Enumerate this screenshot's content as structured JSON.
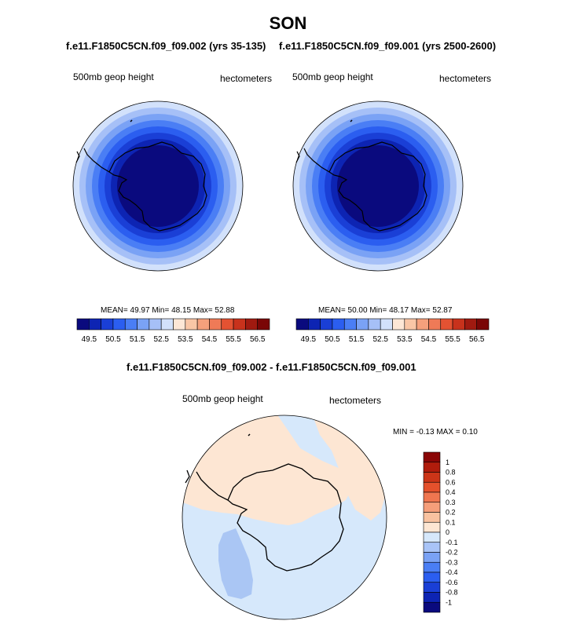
{
  "page": {
    "title": "SON"
  },
  "chart_data": [
    {
      "type": "heatmap",
      "projection": "south-polar-stereographic",
      "case_title": "f.e11.F1850C5CN.f09_f09.002 (yrs 35-135)",
      "variable": "500mb geop height",
      "units": "hectometers",
      "stats": {
        "mean_label": "MEAN=",
        "mean": "49.97",
        "min_label": "Min=",
        "min": "48.15",
        "max_label": "Max=",
        "max": "52.88"
      },
      "rings": [
        52.5,
        52.0,
        51.5,
        51.0,
        50.5,
        50.0,
        49.5,
        49.0
      ],
      "colorbar": {
        "colors": [
          "#0a0a7e",
          "#0d24b3",
          "#1a3fd6",
          "#2b5ef0",
          "#4a7ef5",
          "#7aa2f5",
          "#a6c0f7",
          "#d2e1fb",
          "#fde7d6",
          "#f9c6a6",
          "#f5a07c",
          "#ef7a57",
          "#e45232",
          "#c8321c",
          "#a01a10",
          "#7a0606"
        ],
        "labels": [
          "49.5",
          "50.5",
          "51.5",
          "52.5",
          "53.5",
          "54.5",
          "55.5",
          "56.5"
        ]
      }
    },
    {
      "type": "heatmap",
      "projection": "south-polar-stereographic",
      "case_title": "f.e11.F1850C5CN.f09_f09.001 (yrs 2500-2600)",
      "variable": "500mb geop height",
      "units": "hectometers",
      "stats": {
        "mean_label": "MEAN=",
        "mean": "50.00",
        "min_label": "Min=",
        "min": "48.17",
        "max_label": "Max=",
        "max": "52.87"
      },
      "rings": [
        52.5,
        52.0,
        51.5,
        51.0,
        50.5,
        50.0,
        49.5,
        49.0
      ],
      "colorbar": {
        "colors": [
          "#0a0a7e",
          "#0d24b3",
          "#1a3fd6",
          "#2b5ef0",
          "#4a7ef5",
          "#7aa2f5",
          "#a6c0f7",
          "#d2e1fb",
          "#fde7d6",
          "#f9c6a6",
          "#f5a07c",
          "#ef7a57",
          "#e45232",
          "#c8321c",
          "#a01a10",
          "#7a0606"
        ],
        "labels": [
          "49.5",
          "50.5",
          "51.5",
          "52.5",
          "53.5",
          "54.5",
          "55.5",
          "56.5"
        ]
      }
    },
    {
      "type": "heatmap",
      "projection": "south-polar-stereographic",
      "diff_title": "f.e11.F1850C5CN.f09_f09.002 - f.e11.F1850C5CN.f09_f09.001",
      "variable": "500mb geop height",
      "units": "hectometers",
      "stats": {
        "min_label": "MIN =",
        "min": "-0.13",
        "max_label": "MAX =",
        "max": "0.10"
      },
      "colorbar": {
        "colors": [
          "#0a0a7e",
          "#0d24b3",
          "#1a3fd6",
          "#2b5ef0",
          "#4a7ef5",
          "#7aa2f5",
          "#a9c4f7",
          "#d6e8fb",
          "#fde6d3",
          "#f9c2a0",
          "#f59e7a",
          "#ef7650",
          "#e4512c",
          "#cc3518",
          "#b01c0c",
          "#8a0606"
        ],
        "labels": [
          "1",
          "0.8",
          "0.6",
          "0.4",
          "0.3",
          "0.2",
          "0.1",
          "0",
          "-0.1",
          "-0.2",
          "-0.3",
          "-0.4",
          "-0.6",
          "-0.8",
          "-1"
        ]
      }
    }
  ]
}
